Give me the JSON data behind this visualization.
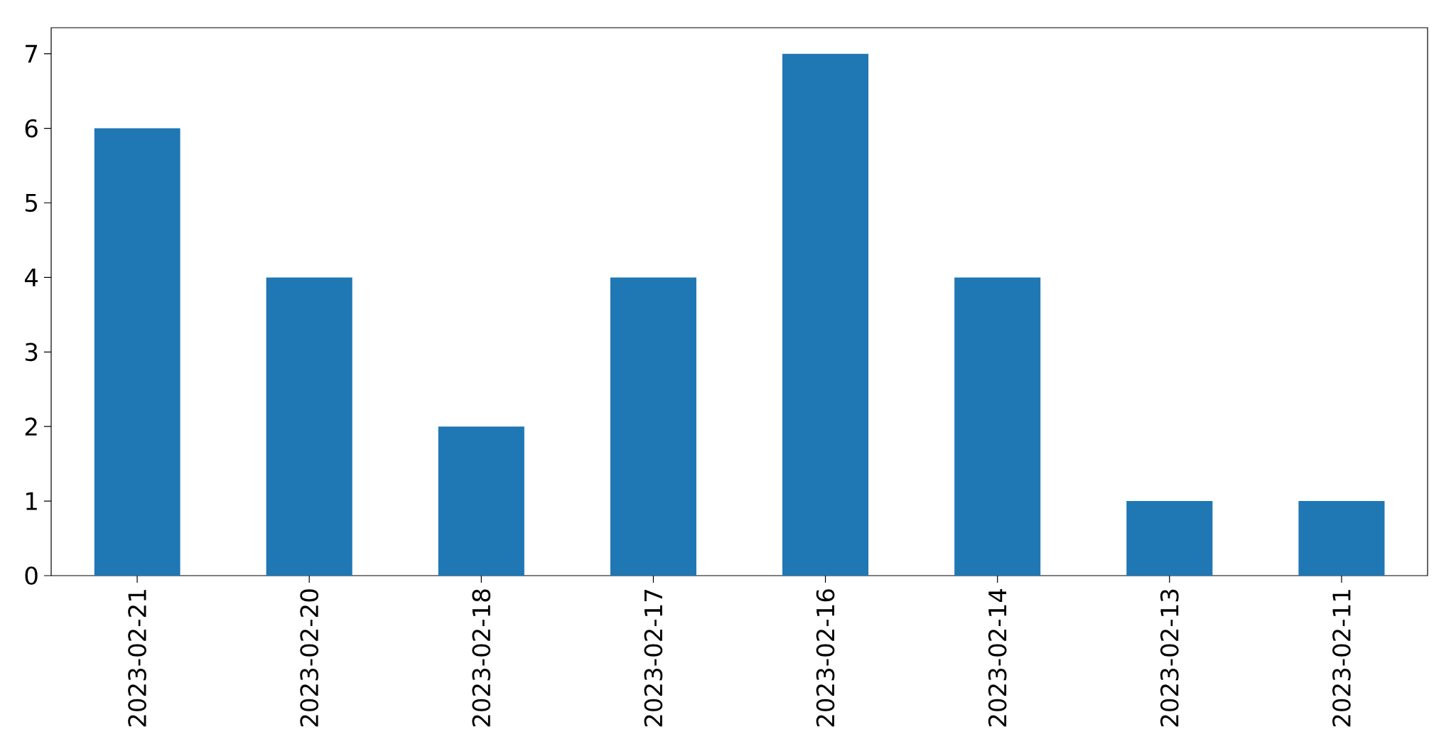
{
  "chart_data": {
    "type": "bar",
    "categories": [
      "2023-02-21",
      "2023-02-20",
      "2023-02-18",
      "2023-02-17",
      "2023-02-16",
      "2023-02-14",
      "2023-02-13",
      "2023-02-11"
    ],
    "values": [
      6,
      4,
      2,
      4,
      7,
      4,
      1,
      1
    ],
    "color": "#1f77b4",
    "ylim": [
      0,
      7.35
    ],
    "yticks": [
      0,
      1,
      2,
      3,
      4,
      5,
      6,
      7
    ]
  }
}
